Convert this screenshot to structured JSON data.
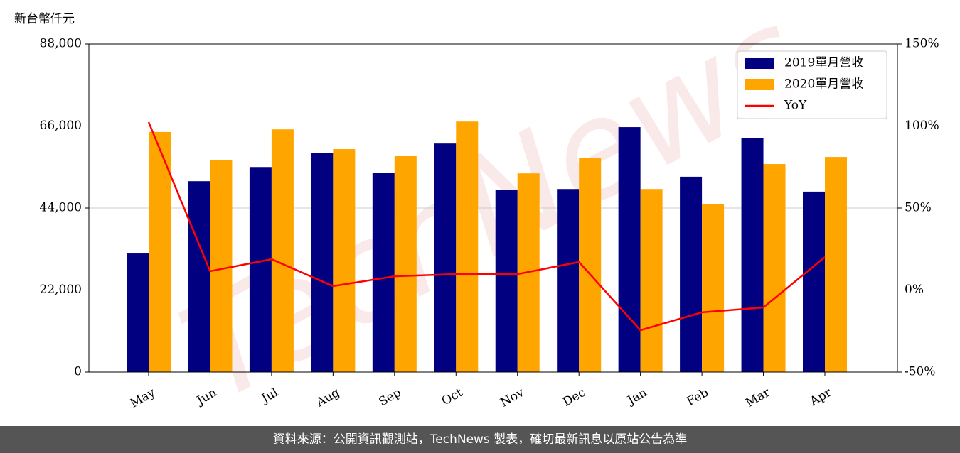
{
  "chart_data": {
    "type": "bar_line",
    "y_label": "新台幣仟元",
    "watermark": "TechNews",
    "categories": [
      "May",
      "Jun",
      "Jul",
      "Aug",
      "Sep",
      "Oct",
      "Nov",
      "Dec",
      "Jan",
      "Feb",
      "Mar",
      "Apr"
    ],
    "series": [
      {
        "name": "2019單月營收",
        "color": "#000080",
        "type": "bar",
        "values": [
          31800,
          51200,
          55000,
          58700,
          53500,
          61300,
          48800,
          49100,
          65700,
          52400,
          62700,
          48400
        ]
      },
      {
        "name": "2020單月營收",
        "color": "#ffa500",
        "type": "bar",
        "values": [
          64400,
          56800,
          65100,
          59800,
          57900,
          67200,
          53300,
          57500,
          49100,
          45100,
          55800,
          57700
        ]
      },
      {
        "name": "YoY",
        "color": "#ff0000",
        "type": "line",
        "axis": "y2",
        "values": [
          102.4,
          11.5,
          18.8,
          2.4,
          8.4,
          9.7,
          9.7,
          17.1,
          -24.5,
          -13.6,
          -10.6,
          20.1
        ]
      }
    ],
    "ylim": [
      0,
      88000
    ],
    "yticks": [
      0,
      {
        "value": 22000,
        "label": "22,000"
      },
      {
        "value": 44000,
        "label": "44,000"
      },
      {
        "value": 66000,
        "label": "66,000"
      },
      {
        "value": 88000,
        "label": "88,000"
      }
    ],
    "y2lim": [
      -50,
      150
    ],
    "y2ticks": [
      {
        "value": -50,
        "label": "-50%"
      },
      {
        "value": 0,
        "label": "0%"
      },
      {
        "value": 50,
        "label": "50%"
      },
      {
        "value": 100,
        "label": "100%"
      },
      {
        "value": 150,
        "label": "150%"
      }
    ],
    "grid": true,
    "legend": "upper right",
    "source": "資料來源：公開資訊觀測站，TechNews 製表，確切最新訊息以原站公告為準"
  }
}
